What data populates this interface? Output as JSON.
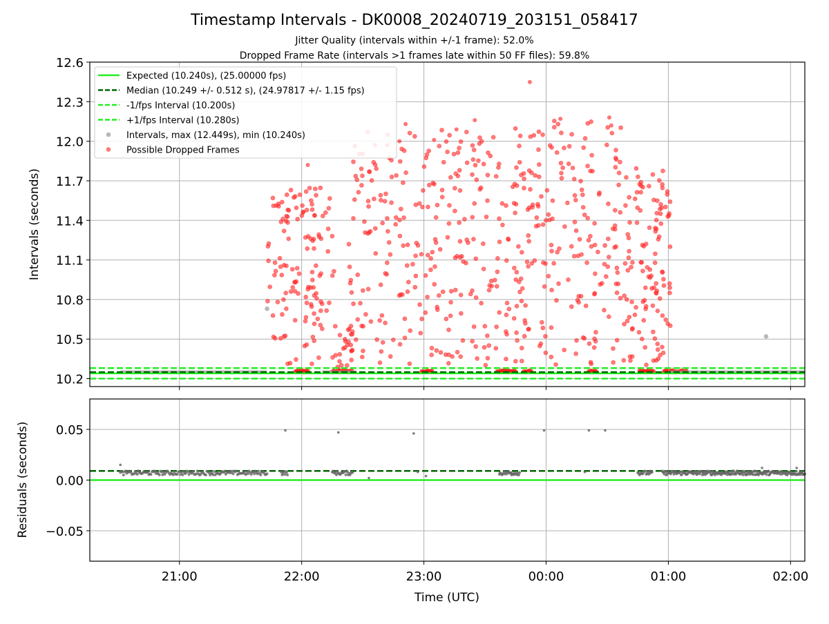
{
  "figure": {
    "title": "Timestamp Intervals - DK0008_20240719_203151_058417",
    "subtitle_1": "Jitter Quality (intervals within +/-1 frame): 52.0%",
    "subtitle_2": "Dropped Frame Rate (intervals >1 frames late within 50 FF files): 59.8%"
  },
  "chart_data": [
    {
      "type": "scatter",
      "name": "intervals",
      "xlabel": "",
      "ylabel": "Intervals (seconds)",
      "xlim": [
        "20:16",
        "02:07"
      ],
      "ylim": [
        10.14,
        12.6
      ],
      "yticks": [
        "10.2",
        "10.5",
        "10.8",
        "11.1",
        "11.4",
        "11.7",
        "12.0",
        "12.3",
        "12.6"
      ],
      "grid": true,
      "legend_position": "upper-left",
      "legend": [
        {
          "label": "Expected (10.240s), (25.00000 fps)",
          "style": "solid-line",
          "color": "#22ee22"
        },
        {
          "label": "Median (10.249 +/- 0.512 s), (24.97817 +/- 1.15 fps)",
          "style": "dashed-line",
          "color": "#006400"
        },
        {
          "label": "-1/fps Interval (10.200s)",
          "style": "dashed-line",
          "color": "#22ee22"
        },
        {
          "label": "+1/fps Interval (10.280s)",
          "style": "dashed-line",
          "color": "#22ee22"
        },
        {
          "label": "Intervals, max (12.449s), min (10.240s)",
          "style": "dot",
          "color": "#888888"
        },
        {
          "label": "Possible Dropped Frames",
          "style": "dot",
          "color": "#ff2222"
        }
      ],
      "reference_lines": [
        {
          "name": "expected",
          "y": 10.24,
          "color": "#22ee22",
          "dash": false
        },
        {
          "name": "median",
          "y": 10.249,
          "color": "#006400",
          "dash": true
        },
        {
          "name": "minus-one-frame",
          "y": 10.2,
          "color": "#22ee22",
          "dash": true
        },
        {
          "name": "plus-one-frame",
          "y": 10.28,
          "color": "#22ee22",
          "dash": true
        }
      ],
      "baseline_segments": [
        {
          "from": "20:31",
          "to": "21:43",
          "y": 10.249
        },
        {
          "from": "22:10",
          "to": "22:27",
          "y": 10.249
        },
        {
          "from": "01:00",
          "to": "02:07",
          "y": 10.249
        }
      ],
      "gray_outliers": [
        {
          "x": "21:43",
          "y": 10.73
        },
        {
          "x": "01:48",
          "y": 10.52
        }
      ],
      "dropped_frame_clusters": [
        {
          "from": "21:43",
          "to": "22:16",
          "ymin": 10.3,
          "ymax": 11.65,
          "count": 130
        },
        {
          "from": "22:16",
          "to": "22:27",
          "ymin": 10.25,
          "ymax": 10.6,
          "count": 22
        },
        {
          "from": "22:23",
          "to": "23:55",
          "ymin": 10.3,
          "ymax": 12.1,
          "count": 320
        },
        {
          "from": "23:55",
          "to": "00:38",
          "ymin": 10.3,
          "ymax": 12.2,
          "count": 150
        },
        {
          "from": "00:38",
          "to": "01:01",
          "ymin": 10.3,
          "ymax": 11.8,
          "count": 120
        }
      ],
      "dropped_frame_highlights": [
        {
          "x": "23:52",
          "y": 12.449
        },
        {
          "x": "00:07",
          "y": 12.17
        },
        {
          "x": "00:31",
          "y": 12.18
        },
        {
          "x": "00:32",
          "y": 12.12
        },
        {
          "x": "22:51",
          "y": 12.13
        },
        {
          "x": "23:16",
          "y": 12.09
        },
        {
          "x": "23:25",
          "y": 12.16
        },
        {
          "x": "22:36",
          "y": 11.97
        },
        {
          "x": "22:42",
          "y": 11.97
        },
        {
          "x": "22:48",
          "y": 12.0
        },
        {
          "x": "23:05",
          "y": 12.01
        },
        {
          "x": "22:03",
          "y": 11.82
        }
      ],
      "dropped_frame_baseline_runs": [
        {
          "from": "21:57",
          "to": "22:03"
        },
        {
          "from": "22:15",
          "to": "22:25"
        },
        {
          "from": "22:59",
          "to": "23:04"
        },
        {
          "from": "23:36",
          "to": "23:45"
        },
        {
          "from": "23:49",
          "to": "23:53"
        },
        {
          "from": "00:21",
          "to": "00:25"
        },
        {
          "from": "00:46",
          "to": "00:53"
        },
        {
          "from": "00:58",
          "to": "01:09"
        }
      ]
    },
    {
      "type": "scatter",
      "name": "residuals",
      "xlabel": "Time (UTC)",
      "ylabel": "Residuals (seconds)",
      "xlim": [
        "20:16",
        "02:07"
      ],
      "ylim": [
        -0.08,
        0.08
      ],
      "yticks": [
        "−0.05",
        "0.00",
        "0.05"
      ],
      "yticks_values": [
        -0.05,
        0.0,
        0.05
      ],
      "xticks": [
        "21:00",
        "22:00",
        "23:00",
        "00:00",
        "01:00",
        "02:00"
      ],
      "grid": true,
      "reference_lines": [
        {
          "name": "expected-residual",
          "y": 0.0,
          "color": "#22ee22",
          "dash": false
        },
        {
          "name": "median-residual",
          "y": 0.009,
          "color": "#006400",
          "dash": true
        }
      ],
      "residual_segments": [
        {
          "from": "20:31",
          "to": "21:43",
          "y": 0.007,
          "count": 140
        },
        {
          "from": "21:50",
          "to": "21:53",
          "y": 0.007,
          "count": 8
        },
        {
          "from": "22:15",
          "to": "22:25",
          "y": 0.007,
          "count": 25
        },
        {
          "from": "23:37",
          "to": "23:47",
          "y": 0.007,
          "count": 25
        },
        {
          "from": "00:45",
          "to": "00:52",
          "y": 0.007,
          "count": 18
        },
        {
          "from": "00:57",
          "to": "02:07",
          "y": 0.007,
          "count": 220
        }
      ],
      "residual_outliers": [
        {
          "x": "20:31",
          "y": 0.015
        },
        {
          "x": "21:52",
          "y": 0.049
        },
        {
          "x": "22:18",
          "y": 0.047
        },
        {
          "x": "22:55",
          "y": 0.046
        },
        {
          "x": "23:59",
          "y": 0.049
        },
        {
          "x": "00:21",
          "y": 0.049
        },
        {
          "x": "00:29",
          "y": 0.049
        },
        {
          "x": "22:33",
          "y": 0.002
        },
        {
          "x": "23:43",
          "y": 0.005
        },
        {
          "x": "22:57",
          "y": 0.008
        },
        {
          "x": "23:01",
          "y": 0.004
        },
        {
          "x": "00:19",
          "y": 0.008
        },
        {
          "x": "01:46",
          "y": 0.012
        },
        {
          "x": "02:03",
          "y": 0.012
        }
      ]
    }
  ]
}
